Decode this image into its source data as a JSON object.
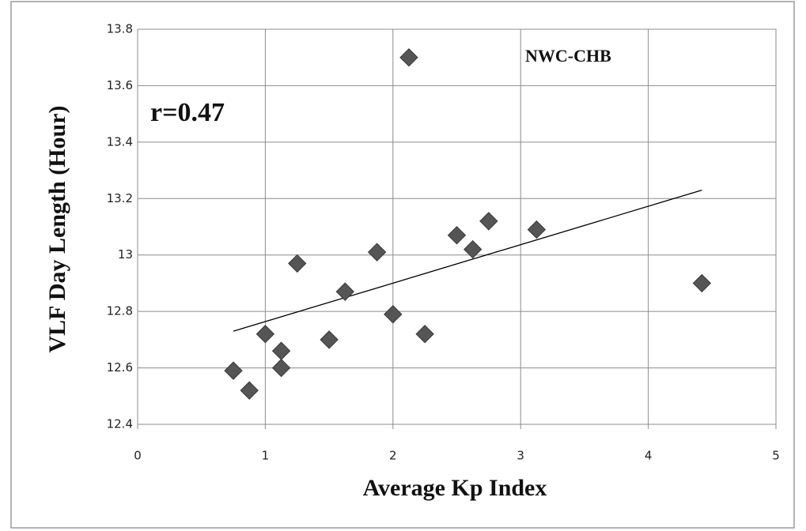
{
  "chart_data": {
    "type": "scatter",
    "x_label": "Average Kp Index",
    "y_label": "VLF Day Length (Hour)",
    "annotations": [
      "r=0.47",
      "NWC-CHB"
    ],
    "x": [
      0.75,
      0.875,
      1,
      1.125,
      1.125,
      1.25,
      1.5,
      1.625,
      1.875,
      2,
      2.125,
      2.25,
      2.5,
      2.625,
      2.75,
      3.125,
      4.42
    ],
    "values": [
      12.59,
      12.52,
      12.72,
      12.66,
      12.6,
      12.97,
      12.7,
      12.87,
      13.01,
      12.79,
      13.7,
      12.72,
      13.07,
      13.02,
      13.12,
      13.09,
      12.9
    ],
    "color": "#555555",
    "trendline": {
      "x": [
        0.75,
        4.42
      ],
      "values": [
        12.73,
        13.23
      ],
      "color": "#000000"
    },
    "xlim": [
      0,
      5
    ],
    "xticks": [
      0,
      1,
      2,
      3,
      4,
      5
    ],
    "ylim": [
      12.4,
      13.8
    ],
    "yticks": [
      12.4,
      12.6,
      12.8,
      13,
      13.2,
      13.4,
      13.6,
      13.8
    ],
    "grid": true
  }
}
